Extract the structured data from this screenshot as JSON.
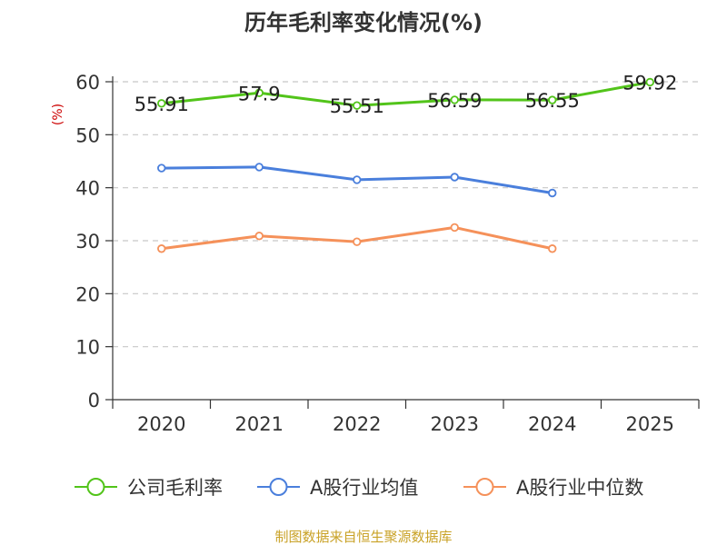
{
  "chart_data": {
    "type": "line",
    "title": "历年毛利率变化情况(%)",
    "ylabel": "(%)",
    "categories": [
      "2020",
      "2021",
      "2022",
      "2023",
      "2024",
      "2025"
    ],
    "ylim": [
      0,
      60
    ],
    "yticks": [
      0,
      10,
      20,
      30,
      40,
      50,
      60
    ],
    "grid": true,
    "legend_position": "bottom",
    "series": [
      {
        "name": "公司毛利率",
        "color": "#52c41a",
        "values": [
          55.91,
          57.9,
          55.51,
          56.59,
          56.55,
          59.92
        ],
        "data_labels": [
          "55.91",
          "57.9",
          "55.51",
          "56.59",
          "56.55",
          "59.92"
        ]
      },
      {
        "name": "A股行业均值",
        "color": "#4a7fdc",
        "values": [
          43.7,
          43.9,
          41.5,
          42.0,
          39.0,
          null
        ]
      },
      {
        "name": "A股行业中位数",
        "color": "#f5915a",
        "values": [
          28.5,
          30.9,
          29.8,
          32.5,
          28.5,
          null
        ]
      }
    ]
  },
  "source_text": "制图数据来自恒生聚源数据库",
  "colors": {
    "axis": "#333333",
    "grid": "#c8c8c8",
    "ylabel": "#cc0000",
    "source": "#c9a227"
  }
}
